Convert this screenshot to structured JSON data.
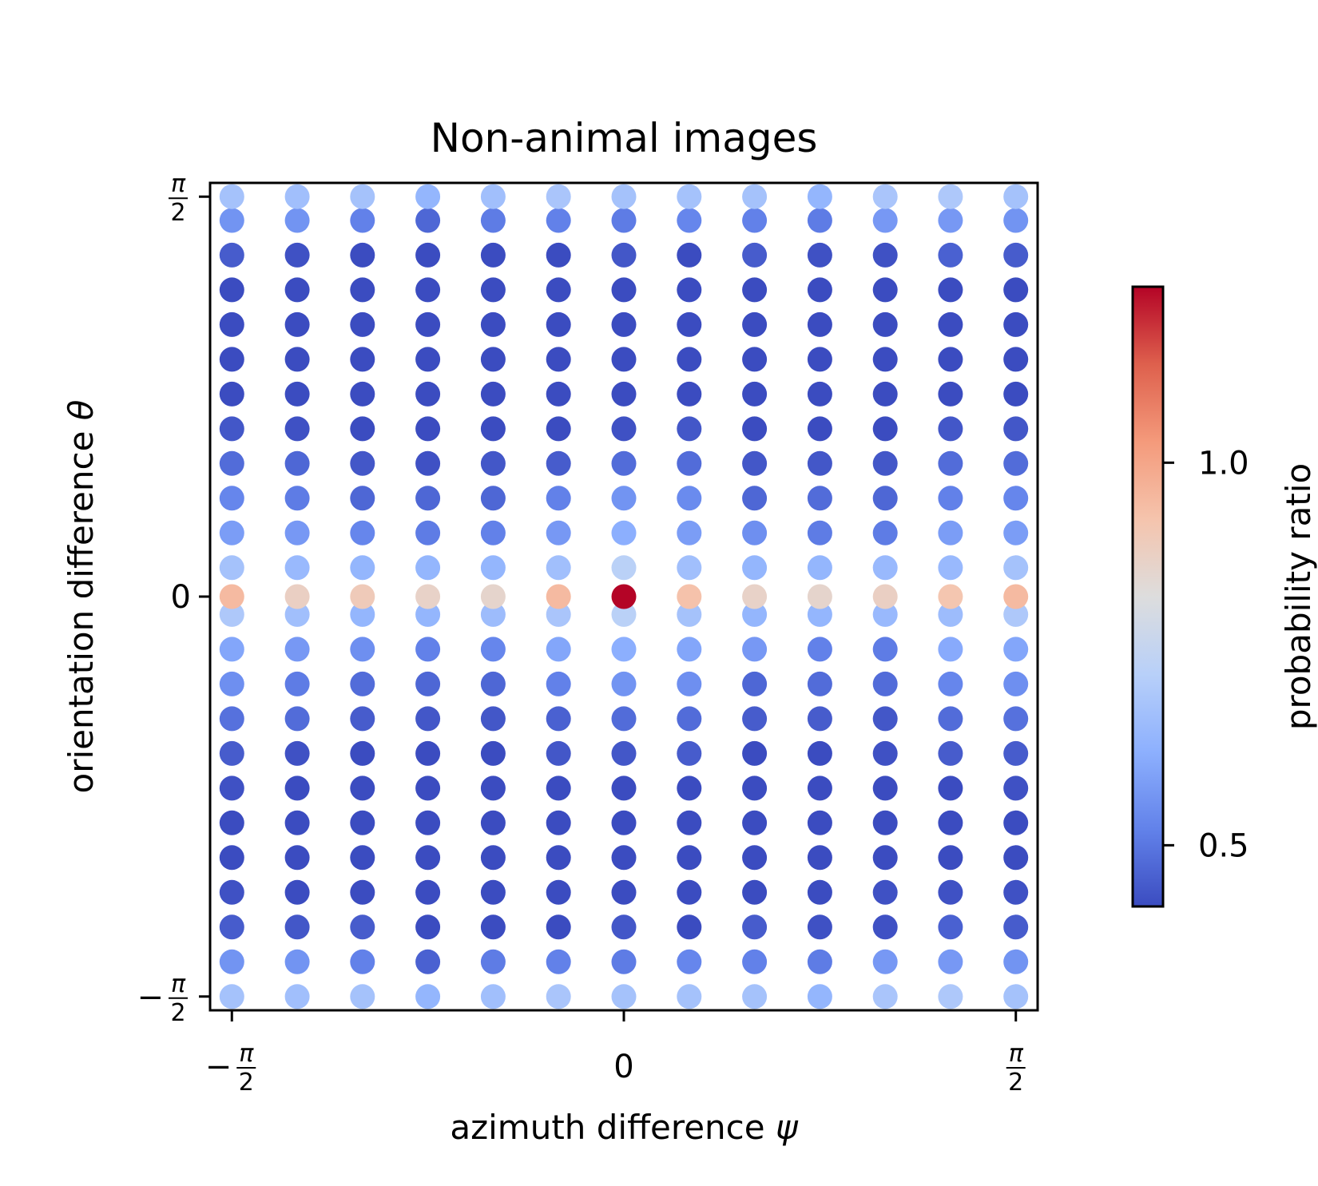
{
  "chart_data": {
    "type": "scatter",
    "title": "Non-animal images",
    "xlabel_text": "azimuth difference ",
    "xlabel_symbol": "ψ",
    "ylabel_text": "orientation difference ",
    "ylabel_symbol": "θ",
    "xlim": [
      -1.6581,
      1.6581
    ],
    "ylim": [
      1.6249,
      -1.6249
    ],
    "x_ticks": [
      {
        "value": -1.5708,
        "sign": "−",
        "num": "π",
        "den": "2"
      },
      {
        "value": 0,
        "sign": "",
        "num": "0",
        "den": ""
      },
      {
        "value": 1.5708,
        "sign": "",
        "num": "π",
        "den": "2"
      }
    ],
    "y_ticks": [
      {
        "value": -1.5708,
        "sign": "−",
        "num": "π",
        "den": "2"
      },
      {
        "value": 0,
        "sign": "",
        "num": "0",
        "den": ""
      },
      {
        "value": 1.5708,
        "sign": "",
        "num": "π",
        "den": "2"
      }
    ],
    "grid": false,
    "colormap": "coolwarm",
    "colorbar": {
      "label": "probability ratio",
      "range": [
        0.42,
        1.23
      ],
      "ticks": [
        0.5,
        1.0
      ],
      "tick_labels": [
        "0.5",
        "1.0"
      ],
      "placement": "right"
    },
    "x": [
      -1.5708,
      -1.309,
      -1.0472,
      -0.7854,
      -0.5236,
      -0.2618,
      0,
      0.2618,
      0.5236,
      0.7854,
      1.0472,
      1.309,
      1.5708
    ],
    "y": [
      -1.5708,
      -1.4344,
      -1.298,
      -1.1616,
      -1.0252,
      -0.8888,
      -0.7524,
      -0.616,
      -0.4796,
      -0.3432,
      -0.2068,
      -0.0704,
      0,
      0.1136,
      0.25,
      0.3864,
      0.5228,
      0.6592,
      0.7956,
      0.932,
      1.0684,
      1.2048,
      1.3412,
      1.4776,
      1.5708
    ],
    "values": [
      [
        0.68,
        0.67,
        0.68,
        0.64,
        0.67,
        0.69,
        0.68,
        0.68,
        0.68,
        0.64,
        0.69,
        0.7,
        0.68
      ],
      [
        0.56,
        0.56,
        0.52,
        0.46,
        0.51,
        0.52,
        0.51,
        0.53,
        0.52,
        0.51,
        0.57,
        0.57,
        0.56
      ],
      [
        0.45,
        0.44,
        0.45,
        0.4,
        0.41,
        0.39,
        0.44,
        0.41,
        0.45,
        0.43,
        0.43,
        0.46,
        0.45
      ],
      [
        0.43,
        0.42,
        0.39,
        0.38,
        0.37,
        0.37,
        0.39,
        0.37,
        0.38,
        0.4,
        0.43,
        0.43,
        0.43
      ],
      [
        0.41,
        0.4,
        0.37,
        0.35,
        0.38,
        0.33,
        0.38,
        0.38,
        0.37,
        0.38,
        0.41,
        0.4,
        0.41
      ],
      [
        0.41,
        0.37,
        0.36,
        0.35,
        0.36,
        0.36,
        0.36,
        0.36,
        0.37,
        0.37,
        0.38,
        0.39,
        0.41
      ],
      [
        0.43,
        0.41,
        0.37,
        0.38,
        0.4,
        0.36,
        0.4,
        0.42,
        0.37,
        0.38,
        0.4,
        0.39,
        0.43
      ],
      [
        0.45,
        0.43,
        0.41,
        0.4,
        0.4,
        0.44,
        0.44,
        0.45,
        0.4,
        0.42,
        0.43,
        0.45,
        0.45
      ],
      [
        0.49,
        0.48,
        0.45,
        0.44,
        0.44,
        0.46,
        0.48,
        0.48,
        0.45,
        0.45,
        0.44,
        0.48,
        0.49
      ],
      [
        0.55,
        0.51,
        0.48,
        0.47,
        0.47,
        0.52,
        0.56,
        0.55,
        0.47,
        0.48,
        0.48,
        0.53,
        0.55
      ],
      [
        0.6,
        0.57,
        0.55,
        0.52,
        0.53,
        0.6,
        0.62,
        0.6,
        0.57,
        0.52,
        0.51,
        0.61,
        0.6
      ],
      [
        0.7,
        0.67,
        0.64,
        0.64,
        0.66,
        0.69,
        0.73,
        0.68,
        0.64,
        0.64,
        0.65,
        0.66,
        0.7
      ],
      [
        0.95,
        0.88,
        0.9,
        0.87,
        0.86,
        0.95,
        1.23,
        0.93,
        0.87,
        0.86,
        0.88,
        0.92,
        0.95
      ],
      [
        0.68,
        0.65,
        0.64,
        0.64,
        0.64,
        0.67,
        0.73,
        0.67,
        0.64,
        0.64,
        0.65,
        0.65,
        0.68
      ],
      [
        0.58,
        0.57,
        0.53,
        0.51,
        0.52,
        0.57,
        0.62,
        0.58,
        0.55,
        0.51,
        0.51,
        0.58,
        0.58
      ],
      [
        0.53,
        0.51,
        0.47,
        0.47,
        0.47,
        0.52,
        0.56,
        0.54,
        0.47,
        0.48,
        0.47,
        0.52,
        0.53
      ],
      [
        0.48,
        0.47,
        0.44,
        0.43,
        0.44,
        0.45,
        0.48,
        0.48,
        0.44,
        0.44,
        0.44,
        0.48,
        0.48
      ],
      [
        0.44,
        0.43,
        0.4,
        0.39,
        0.41,
        0.42,
        0.43,
        0.44,
        0.4,
        0.4,
        0.41,
        0.44,
        0.44
      ],
      [
        0.41,
        0.41,
        0.36,
        0.37,
        0.38,
        0.35,
        0.39,
        0.4,
        0.35,
        0.37,
        0.39,
        0.38,
        0.41
      ],
      [
        0.4,
        0.37,
        0.36,
        0.35,
        0.36,
        0.35,
        0.37,
        0.36,
        0.37,
        0.37,
        0.38,
        0.39,
        0.4
      ],
      [
        0.4,
        0.38,
        0.37,
        0.37,
        0.37,
        0.35,
        0.38,
        0.38,
        0.38,
        0.38,
        0.37,
        0.4,
        0.4
      ],
      [
        0.42,
        0.41,
        0.39,
        0.38,
        0.38,
        0.37,
        0.39,
        0.38,
        0.38,
        0.38,
        0.4,
        0.41,
        0.42
      ],
      [
        0.45,
        0.43,
        0.42,
        0.4,
        0.42,
        0.39,
        0.44,
        0.42,
        0.45,
        0.43,
        0.43,
        0.46,
        0.45
      ],
      [
        0.56,
        0.56,
        0.52,
        0.47,
        0.51,
        0.52,
        0.51,
        0.53,
        0.52,
        0.51,
        0.57,
        0.57,
        0.56
      ],
      [
        0.68,
        0.67,
        0.68,
        0.64,
        0.67,
        0.69,
        0.68,
        0.68,
        0.68,
        0.64,
        0.69,
        0.7,
        0.68
      ]
    ]
  }
}
